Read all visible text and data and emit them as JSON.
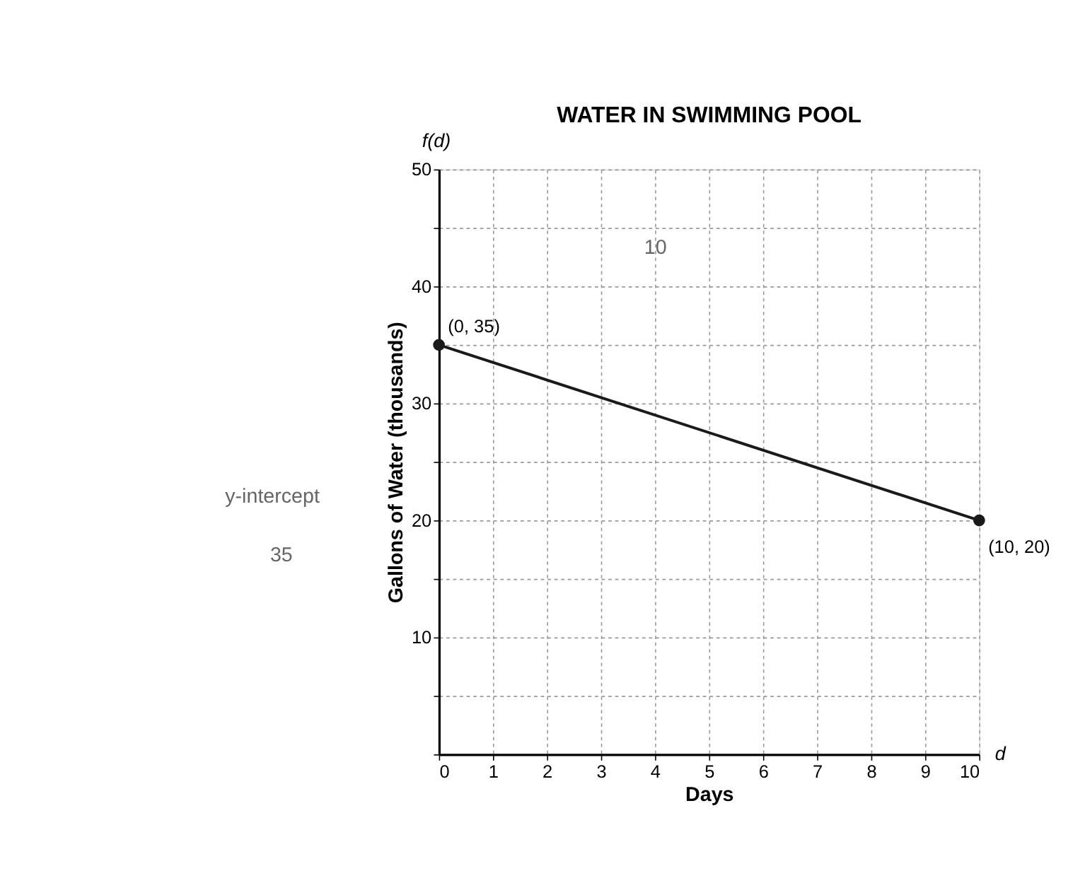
{
  "chart_data": {
    "type": "line",
    "title": "WATER IN SWIMMING POOL",
    "xlabel": "Days",
    "ylabel": "Gallons of Water (thousands)",
    "x": [
      0,
      10
    ],
    "series": [
      {
        "color": "#1a1a1a",
        "values": [
          35,
          20
        ]
      }
    ],
    "xlim": [
      0,
      10
    ],
    "ylim": [
      0,
      50
    ],
    "xticks": [
      0,
      1,
      2,
      3,
      4,
      5,
      6,
      7,
      8,
      9,
      10
    ],
    "yticks": [
      {
        "value": 0,
        "label": null
      },
      {
        "value": 5,
        "label": null
      },
      10,
      {
        "value": 15,
        "label": null
      },
      20,
      {
        "value": 25,
        "label": null
      },
      30,
      {
        "value": 35,
        "label": null
      },
      40,
      {
        "value": 45,
        "label": null
      },
      50
    ],
    "grid": true,
    "marker": "circle",
    "line_style": "solid",
    "annotations": [
      {
        "text": "(0, 35)",
        "x": 0,
        "y": 35
      },
      {
        "text": "(10, 20)",
        "x": 10,
        "y": 20
      },
      "f(d)",
      "d",
      "10",
      "y-intercept",
      "35"
    ]
  }
}
